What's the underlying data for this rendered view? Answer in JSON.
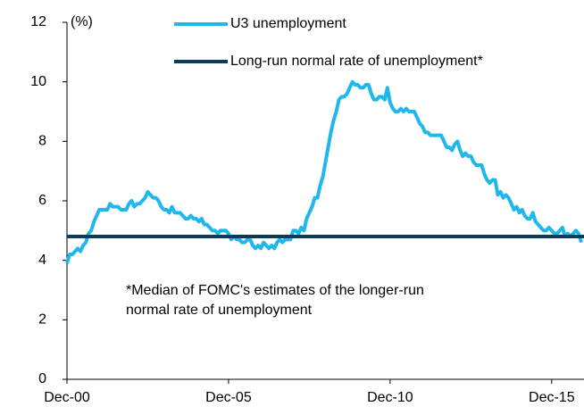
{
  "chart_data": {
    "type": "line",
    "unit_label": "(%)",
    "categories": [
      "Dec-00",
      null,
      null,
      null,
      null,
      null,
      null,
      null,
      null,
      null,
      null,
      null,
      null,
      null,
      null,
      null,
      null,
      null,
      null,
      null,
      null,
      null,
      null,
      null,
      null,
      null,
      null,
      null,
      null,
      null,
      null,
      null,
      null,
      null,
      null,
      null,
      null,
      null,
      null,
      null,
      null,
      null,
      null,
      null,
      null,
      null,
      null,
      null,
      null,
      null,
      null,
      null,
      null,
      null,
      null,
      null,
      null,
      null,
      null,
      null,
      "Dec-05",
      null,
      null,
      null,
      null,
      null,
      null,
      null,
      null,
      null,
      null,
      null,
      null,
      null,
      null,
      null,
      null,
      null,
      null,
      null,
      null,
      null,
      null,
      null,
      null,
      null,
      null,
      null,
      null,
      null,
      null,
      null,
      null,
      null,
      null,
      null,
      null,
      null,
      null,
      null,
      null,
      null,
      null,
      null,
      null,
      null,
      null,
      null,
      null,
      null,
      null,
      null,
      null,
      null,
      null,
      null,
      null,
      null,
      null,
      null,
      "Dec-10",
      null,
      null,
      null,
      null,
      null,
      null,
      null,
      null,
      null,
      null,
      null,
      null,
      null,
      null,
      null,
      null,
      null,
      null,
      null,
      null,
      null,
      null,
      null,
      null,
      null,
      null,
      null,
      null,
      null,
      null,
      null,
      null,
      null,
      null,
      null,
      null,
      null,
      null,
      null,
      null,
      null,
      null,
      null,
      null,
      null,
      null,
      null,
      null,
      null,
      null,
      null,
      null,
      null,
      null,
      null,
      null,
      null,
      null,
      null,
      "Dec-15",
      null,
      null,
      null,
      null,
      null,
      null,
      null,
      null,
      null,
      null,
      null
    ],
    "series": [
      {
        "name": "U3 unemployment",
        "color": "#1fb8ec",
        "values": [
          3.9,
          4.2,
          4.2,
          4.3,
          4.4,
          4.3,
          4.5,
          4.6,
          4.9,
          5.0,
          5.3,
          5.5,
          5.7,
          5.7,
          5.7,
          5.7,
          5.9,
          5.8,
          5.8,
          5.8,
          5.7,
          5.7,
          5.7,
          5.9,
          6.0,
          5.8,
          5.9,
          5.9,
          6.0,
          6.1,
          6.3,
          6.2,
          6.1,
          6.1,
          6.0,
          5.8,
          5.7,
          5.7,
          5.6,
          5.8,
          5.6,
          5.6,
          5.6,
          5.5,
          5.4,
          5.4,
          5.5,
          5.4,
          5.4,
          5.3,
          5.4,
          5.2,
          5.2,
          5.1,
          5.0,
          5.0,
          4.9,
          5.0,
          5.0,
          5.0,
          4.9,
          4.7,
          4.8,
          4.7,
          4.7,
          4.6,
          4.6,
          4.7,
          4.7,
          4.5,
          4.4,
          4.5,
          4.4,
          4.6,
          4.5,
          4.4,
          4.5,
          4.4,
          4.6,
          4.7,
          4.6,
          4.7,
          4.7,
          4.7,
          5.0,
          5.0,
          4.9,
          5.1,
          5.0,
          5.4,
          5.6,
          5.8,
          6.1,
          6.1,
          6.5,
          6.8,
          7.3,
          7.8,
          8.3,
          8.7,
          9.0,
          9.4,
          9.5,
          9.5,
          9.6,
          9.8,
          10.0,
          9.9,
          9.9,
          9.8,
          9.8,
          9.9,
          9.9,
          9.6,
          9.4,
          9.4,
          9.5,
          9.5,
          9.4,
          9.8,
          9.3,
          9.1,
          9.0,
          9.0,
          9.1,
          9.0,
          9.1,
          9.0,
          9.0,
          9.0,
          8.8,
          8.6,
          8.5,
          8.3,
          8.3,
          8.2,
          8.2,
          8.2,
          8.2,
          8.2,
          8.0,
          7.8,
          7.8,
          7.7,
          7.9,
          8.0,
          7.7,
          7.5,
          7.6,
          7.5,
          7.5,
          7.3,
          7.2,
          7.2,
          7.2,
          6.9,
          6.7,
          6.6,
          6.7,
          6.7,
          6.2,
          6.3,
          6.1,
          6.2,
          6.1,
          5.9,
          5.7,
          5.8,
          5.6,
          5.7,
          5.5,
          5.4,
          5.4,
          5.6,
          5.3,
          5.2,
          5.1,
          5.0,
          5.0,
          5.1,
          5.0,
          4.9,
          4.9,
          5.0,
          5.1,
          4.8,
          4.9,
          4.8,
          4.9,
          5.0,
          4.9,
          4.6
        ]
      }
    ],
    "reference_line": {
      "name": "Long-run normal rate of unemployment*",
      "color": "#0b3a5b",
      "value": 4.8
    },
    "annotation": [
      "*Median of FOMC's estimates of the longer-run",
      "normal rate of unemployment"
    ],
    "ylim": [
      0,
      12
    ],
    "yticks": [
      0,
      2,
      4,
      6,
      8,
      10,
      12
    ]
  }
}
